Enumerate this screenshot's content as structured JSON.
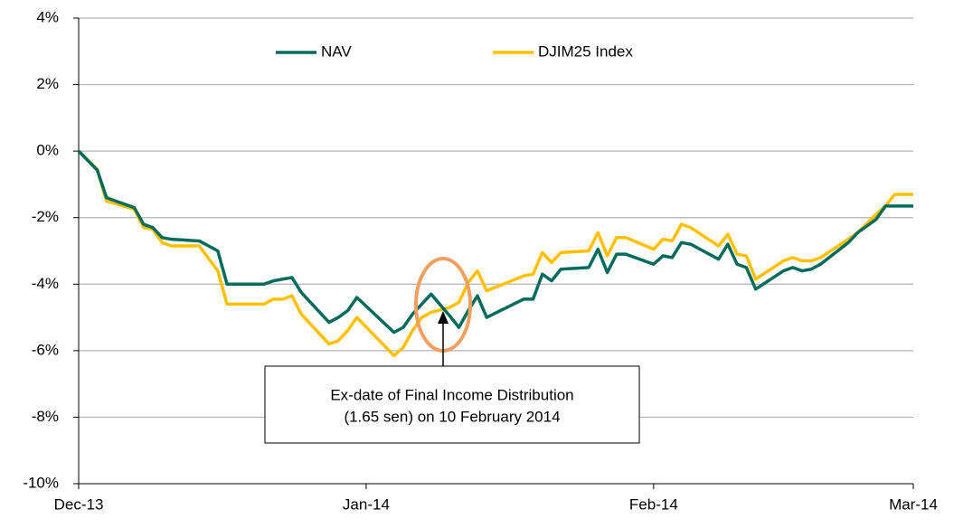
{
  "chart_data": {
    "type": "line",
    "x": [
      0,
      2,
      3,
      6,
      7,
      8,
      9,
      10,
      13,
      15,
      16,
      20,
      21,
      22,
      23,
      24,
      27,
      28,
      29,
      30,
      34,
      35,
      36,
      37,
      38,
      40,
      41,
      42,
      43,
      44,
      48,
      49,
      50,
      51,
      52,
      55,
      56,
      57,
      58,
      59,
      62,
      63,
      64,
      65,
      66,
      69,
      70,
      71,
      72,
      73,
      76,
      77,
      78,
      79,
      80,
      83,
      84,
      86,
      87,
      88,
      90
    ],
    "series": [
      {
        "name": "NAV",
        "color": "#006b5b",
        "values": [
          0,
          -0.57,
          -1.4,
          -1.7,
          -2.2,
          -2.3,
          -2.6,
          -2.65,
          -2.7,
          -3.0,
          -4.0,
          -4.0,
          -3.9,
          -3.85,
          -3.8,
          -4.25,
          -5.15,
          -5.0,
          -4.8,
          -4.4,
          -5.45,
          -5.3,
          -4.9,
          -4.6,
          -4.3,
          -4.95,
          -5.3,
          -4.8,
          -4.35,
          -5.0,
          -4.45,
          -4.45,
          -3.7,
          -3.9,
          -3.55,
          -3.5,
          -2.95,
          -3.65,
          -3.1,
          -3.1,
          -3.4,
          -3.15,
          -3.2,
          -2.75,
          -2.8,
          -3.25,
          -2.8,
          -3.4,
          -3.5,
          -4.15,
          -3.6,
          -3.5,
          -3.6,
          -3.55,
          -3.4,
          -2.75,
          -2.45,
          -2.05,
          -1.65,
          -1.65,
          -1.65
        ]
      },
      {
        "name": "DJIM25 Index",
        "color": "#ffc000",
        "values": [
          0,
          -0.55,
          -1.5,
          -1.75,
          -2.3,
          -2.35,
          -2.75,
          -2.85,
          -2.85,
          -3.6,
          -4.6,
          -4.6,
          -4.45,
          -4.45,
          -4.35,
          -4.9,
          -5.8,
          -5.7,
          -5.4,
          -5.0,
          -6.15,
          -5.9,
          -5.4,
          -5.0,
          -4.85,
          -4.7,
          -4.55,
          -3.95,
          -3.6,
          -4.2,
          -3.75,
          -3.7,
          -3.05,
          -3.35,
          -3.05,
          -3.0,
          -2.45,
          -3.15,
          -2.6,
          -2.6,
          -2.95,
          -2.65,
          -2.7,
          -2.2,
          -2.3,
          -2.85,
          -2.5,
          -3.1,
          -3.15,
          -3.85,
          -3.3,
          -3.2,
          -3.3,
          -3.3,
          -3.2,
          -2.65,
          -2.45,
          -1.9,
          -1.65,
          -1.3,
          -1.3
        ]
      }
    ],
    "xlim": [
      0,
      90
    ],
    "xticks": [
      {
        "value": 0,
        "label": "Dec-13"
      },
      {
        "value": 31,
        "label": "Jan-14"
      },
      {
        "value": 62,
        "label": "Feb-14"
      },
      {
        "value": 90,
        "label": "Mar-14"
      }
    ],
    "ylim": [
      -10,
      4
    ],
    "yticks": [
      {
        "value": -10,
        "label": "-10%"
      },
      {
        "value": -8,
        "label": "-8%"
      },
      {
        "value": -6,
        "label": "-6%"
      },
      {
        "value": -4,
        "label": "-4%"
      },
      {
        "value": -2,
        "label": "-2%"
      },
      {
        "value": 0,
        "label": "0%"
      },
      {
        "value": 2,
        "label": "2%"
      },
      {
        "value": 4,
        "label": "4%"
      }
    ],
    "grid": true,
    "legend": "top",
    "annotation": {
      "lines": [
        "Ex-date of Final Income Distribution",
        "(1.65 sen) on 10 February 2014"
      ]
    }
  }
}
